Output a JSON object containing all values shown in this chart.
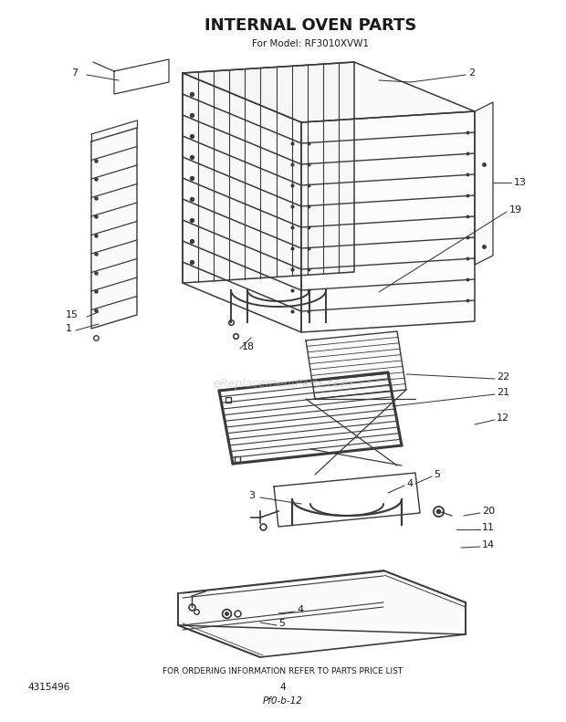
{
  "title": "INTERNAL OVEN PARTS",
  "subtitle": "For Model: RF3010XVW1",
  "bottom_text": "FOR ORDERING INFORMATION REFER TO PARTS PRICE LIST",
  "page_num": "4",
  "doc_code": "Pf0-b-12",
  "part_num_bottom_left": "4315496",
  "watermark": "eReplacementParts.com",
  "bg_color": "#ffffff",
  "lc": "#3a3a3a",
  "title_fontsize": 13,
  "subtitle_fontsize": 7.5
}
